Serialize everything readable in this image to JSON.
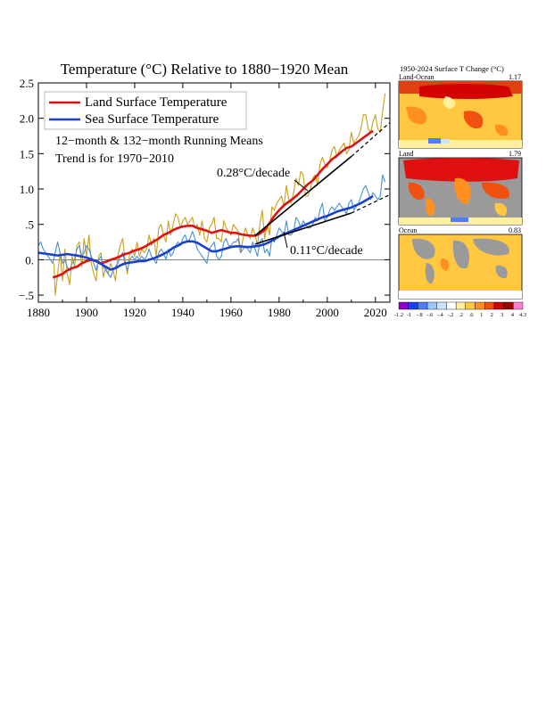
{
  "chart_data": [
    {
      "type": "line",
      "title": "Temperature (°C) Relative to 1880−1920 Mean",
      "xlim": [
        1880,
        2026
      ],
      "ylim": [
        -0.6,
        2.5
      ],
      "xticks": [
        1880,
        1900,
        1920,
        1940,
        1960,
        1980,
        2000,
        2020
      ],
      "xtick_labels": [
        "1880",
        "1900",
        "1920",
        "1940",
        "1960",
        "1980",
        "2000",
        "2020"
      ],
      "yticks": [
        -0.5,
        0,
        0.5,
        1.0,
        1.5,
        2.0,
        2.5
      ],
      "ytick_labels": [
        "−.5",
        "0.",
        ".5",
        "1.0",
        "1.5",
        "2.0",
        "2.5"
      ],
      "zero_line": true,
      "legend_position": "top-left",
      "legend": [
        {
          "label": "Land Surface Temperature",
          "color": "#e01010"
        },
        {
          "label": "Sea Surface Temperature",
          "color": "#1a40d0"
        }
      ],
      "notes": [
        "12−month & 132−month Running Means",
        "Trend is for 1970−2010"
      ],
      "series": [
        {
          "name": "Land Surface Temperature",
          "kind": "12-month running mean",
          "color": "#c8a020",
          "x": [
            1886.5,
            1887,
            1888,
            1889,
            1890,
            1891,
            1892,
            1893,
            1894,
            1895,
            1896,
            1897,
            1898,
            1899,
            1900,
            1901,
            1902,
            1903,
            1904,
            1905,
            1906,
            1907,
            1908,
            1909,
            1910,
            1911,
            1912,
            1913,
            1914,
            1915,
            1916,
            1917,
            1918,
            1919,
            1920,
            1921,
            1922,
            1923,
            1924,
            1925,
            1926,
            1927,
            1928,
            1929,
            1930,
            1931,
            1932,
            1933,
            1934,
            1935,
            1936,
            1937,
            1938,
            1939,
            1940,
            1941,
            1942,
            1943,
            1944,
            1945,
            1946,
            1947,
            1948,
            1949,
            1950,
            1951,
            1952,
            1953,
            1954,
            1955,
            1956,
            1957,
            1958,
            1959,
            1960,
            1961,
            1962,
            1963,
            1964,
            1965,
            1966,
            1967,
            1968,
            1969,
            1970,
            1971,
            1972,
            1973,
            1974,
            1975,
            1976,
            1977,
            1978,
            1979,
            1980,
            1981,
            1982,
            1983,
            1984,
            1985,
            1986,
            1987,
            1988,
            1989,
            1990,
            1991,
            1992,
            1993,
            1994,
            1995,
            1996,
            1997,
            1998,
            1999,
            2000,
            2001,
            2002,
            2003,
            2004,
            2005,
            2006,
            2007,
            2008,
            2009,
            2010,
            2011,
            2012,
            2013,
            2014,
            2015,
            2016,
            2017,
            2018,
            2019,
            2020,
            2021,
            2022,
            2023,
            2024
          ],
          "values": [
            -0.05,
            -0.5,
            -0.2,
            0.1,
            -0.3,
            0.15,
            -0.2,
            -0.35,
            0.05,
            -0.1,
            0.2,
            0.25,
            -0.1,
            0.3,
            0.05,
            0.35,
            -0.05,
            -0.2,
            -0.3,
            0.05,
            0.1,
            -0.25,
            -0.1,
            -0.2,
            -0.05,
            -0.15,
            -0.3,
            0.05,
            0.2,
            0.3,
            0.0,
            -0.2,
            0.1,
            0.15,
            0.05,
            0.25,
            0.05,
            0.15,
            0.1,
            0.15,
            0.35,
            0.2,
            0.3,
            0.05,
            0.45,
            0.5,
            0.35,
            0.25,
            0.55,
            0.35,
            0.5,
            0.65,
            0.6,
            0.45,
            0.55,
            0.6,
            0.5,
            0.55,
            0.6,
            0.45,
            0.5,
            0.35,
            0.55,
            0.3,
            0.25,
            0.45,
            0.5,
            0.6,
            0.3,
            0.3,
            0.25,
            0.55,
            0.45,
            0.4,
            0.35,
            0.5,
            0.45,
            0.4,
            0.1,
            0.3,
            0.45,
            0.35,
            0.3,
            0.45,
            0.35,
            0.2,
            0.5,
            0.7,
            0.3,
            0.5,
            0.35,
            0.75,
            0.7,
            0.8,
            0.85,
            0.9,
            0.75,
            1.05,
            0.85,
            0.8,
            0.95,
            1.15,
            1.05,
            1.25,
            1.2,
            0.9,
            0.9,
            1.0,
            1.15,
            1.2,
            1.05,
            1.35,
            1.45,
            1.35,
            1.3,
            1.4,
            1.55,
            1.6,
            1.45,
            1.55,
            1.6,
            1.65,
            1.5,
            1.55,
            1.8,
            1.65,
            1.7,
            1.75,
            1.85,
            2.05,
            2.05,
            1.85,
            1.8,
            1.95,
            2.05,
            1.85,
            1.8,
            2.1,
            2.35
          ]
        },
        {
          "name": "Sea Surface Temperature",
          "kind": "12-month running mean",
          "color": "#4a90d0",
          "x": [
            1880,
            1881,
            1882,
            1883,
            1884,
            1885,
            1886,
            1887,
            1888,
            1889,
            1890,
            1891,
            1892,
            1893,
            1894,
            1895,
            1896,
            1897,
            1898,
            1899,
            1900,
            1901,
            1902,
            1903,
            1904,
            1905,
            1906,
            1907,
            1908,
            1909,
            1910,
            1911,
            1912,
            1913,
            1914,
            1915,
            1916,
            1917,
            1918,
            1919,
            1920,
            1921,
            1922,
            1923,
            1924,
            1925,
            1926,
            1927,
            1928,
            1929,
            1930,
            1931,
            1932,
            1933,
            1934,
            1935,
            1936,
            1937,
            1938,
            1939,
            1940,
            1941,
            1942,
            1943,
            1944,
            1945,
            1946,
            1947,
            1948,
            1949,
            1950,
            1951,
            1952,
            1953,
            1954,
            1955,
            1956,
            1957,
            1958,
            1959,
            1960,
            1961,
            1962,
            1963,
            1964,
            1965,
            1966,
            1967,
            1968,
            1969,
            1970,
            1971,
            1972,
            1973,
            1974,
            1975,
            1976,
            1977,
            1978,
            1979,
            1980,
            1981,
            1982,
            1983,
            1984,
            1985,
            1986,
            1987,
            1988,
            1989,
            1990,
            1991,
            1992,
            1993,
            1994,
            1995,
            1996,
            1997,
            1998,
            1999,
            2000,
            2001,
            2002,
            2003,
            2004,
            2005,
            2006,
            2007,
            2008,
            2009,
            2010,
            2011,
            2012,
            2013,
            2014,
            2015,
            2016,
            2017,
            2018,
            2019,
            2020,
            2021,
            2022,
            2023,
            2024
          ],
          "values": [
            0.2,
            0.25,
            0.15,
            0.1,
            0.05,
            0.0,
            -0.05,
            0.1,
            0.25,
            0.1,
            -0.05,
            0.0,
            -0.1,
            -0.15,
            -0.05,
            0.0,
            0.15,
            0.2,
            0.05,
            0.1,
            0.2,
            0.15,
            0.05,
            -0.05,
            -0.15,
            0.0,
            0.05,
            -0.1,
            -0.15,
            -0.2,
            -0.25,
            -0.15,
            -0.1,
            -0.05,
            0.05,
            0.1,
            -0.05,
            -0.15,
            0.0,
            0.05,
            0.0,
            0.05,
            0.0,
            0.05,
            0.0,
            0.05,
            0.15,
            0.05,
            0.0,
            -0.05,
            0.1,
            0.15,
            0.1,
            0.0,
            0.15,
            0.05,
            0.1,
            0.2,
            0.25,
            0.2,
            0.3,
            0.35,
            0.25,
            0.3,
            0.4,
            0.3,
            0.15,
            0.1,
            0.05,
            0.0,
            -0.05,
            0.15,
            0.2,
            0.25,
            0.05,
            0.0,
            0.05,
            0.25,
            0.3,
            0.2,
            0.2,
            0.25,
            0.25,
            0.3,
            0.1,
            0.15,
            0.2,
            0.15,
            0.1,
            0.25,
            0.15,
            0.05,
            0.25,
            0.3,
            0.1,
            0.15,
            0.05,
            0.3,
            0.25,
            0.35,
            0.45,
            0.4,
            0.35,
            0.55,
            0.35,
            0.35,
            0.4,
            0.6,
            0.55,
            0.45,
            0.55,
            0.5,
            0.45,
            0.45,
            0.5,
            0.6,
            0.55,
            0.7,
            0.8,
            0.55,
            0.6,
            0.7,
            0.75,
            0.7,
            0.75,
            0.8,
            0.75,
            0.7,
            0.65,
            0.8,
            0.85,
            0.7,
            0.75,
            0.8,
            0.9,
            1.0,
            1.05,
            0.95,
            0.85,
            0.95,
            0.9,
            0.85,
            0.9,
            1.2,
            1.1
          ]
        },
        {
          "name": "Land Surface Temperature",
          "kind": "132-month running mean",
          "color": "#e01010",
          "x": [
            1886,
            1888,
            1890,
            1892,
            1894,
            1896,
            1898,
            1900,
            1902,
            1904,
            1906,
            1908,
            1910,
            1912,
            1914,
            1916,
            1918,
            1920,
            1922,
            1924,
            1926,
            1928,
            1930,
            1932,
            1934,
            1936,
            1938,
            1940,
            1942,
            1944,
            1946,
            1948,
            1950,
            1952,
            1954,
            1956,
            1958,
            1960,
            1962,
            1964,
            1966,
            1968,
            1970,
            1972,
            1974,
            1976,
            1978,
            1980,
            1982,
            1984,
            1986,
            1988,
            1990,
            1992,
            1994,
            1996,
            1998,
            2000,
            2002,
            2004,
            2006,
            2008,
            2010,
            2012,
            2014,
            2016,
            2018,
            2019
          ],
          "values": [
            -0.25,
            -0.23,
            -0.2,
            -0.15,
            -0.12,
            -0.1,
            -0.05,
            -0.02,
            0.0,
            -0.02,
            -0.05,
            -0.03,
            0.0,
            0.02,
            0.05,
            0.08,
            0.1,
            0.13,
            0.15,
            0.18,
            0.22,
            0.26,
            0.3,
            0.35,
            0.38,
            0.42,
            0.45,
            0.47,
            0.48,
            0.48,
            0.45,
            0.43,
            0.41,
            0.38,
            0.4,
            0.42,
            0.4,
            0.38,
            0.38,
            0.36,
            0.35,
            0.34,
            0.34,
            0.37,
            0.42,
            0.52,
            0.62,
            0.7,
            0.77,
            0.82,
            0.87,
            0.93,
            1.0,
            1.07,
            1.12,
            1.2,
            1.28,
            1.35,
            1.42,
            1.47,
            1.53,
            1.58,
            1.6,
            1.65,
            1.7,
            1.75,
            1.8,
            1.82
          ]
        },
        {
          "name": "Sea Surface Temperature",
          "kind": "132-month running mean",
          "color": "#1a40d0",
          "x": [
            1880,
            1884,
            1888,
            1892,
            1896,
            1900,
            1904,
            1906,
            1908,
            1910,
            1912,
            1914,
            1916,
            1918,
            1920,
            1922,
            1924,
            1926,
            1928,
            1930,
            1932,
            1934,
            1936,
            1938,
            1940,
            1942,
            1944,
            1946,
            1948,
            1950,
            1952,
            1954,
            1956,
            1958,
            1960,
            1962,
            1964,
            1966,
            1968,
            1970,
            1972,
            1974,
            1976,
            1978,
            1980,
            1982,
            1984,
            1986,
            1988,
            1990,
            1992,
            1994,
            1996,
            1998,
            2000,
            2002,
            2004,
            2006,
            2008,
            2010,
            2012,
            2014,
            2016,
            2018,
            2019
          ],
          "values": [
            0.1,
            0.08,
            0.06,
            0.08,
            0.06,
            0.03,
            -0.02,
            -0.06,
            -0.1,
            -0.14,
            -0.12,
            -0.08,
            -0.05,
            -0.04,
            -0.03,
            -0.02,
            -0.02,
            0.0,
            0.02,
            0.05,
            0.08,
            0.12,
            0.17,
            0.2,
            0.24,
            0.26,
            0.26,
            0.24,
            0.2,
            0.16,
            0.12,
            0.12,
            0.14,
            0.16,
            0.18,
            0.19,
            0.19,
            0.18,
            0.18,
            0.19,
            0.2,
            0.22,
            0.25,
            0.29,
            0.33,
            0.36,
            0.39,
            0.42,
            0.45,
            0.48,
            0.51,
            0.54,
            0.57,
            0.6,
            0.62,
            0.65,
            0.68,
            0.7,
            0.72,
            0.74,
            0.77,
            0.8,
            0.84,
            0.88,
            0.9
          ]
        },
        {
          "name": "Land trend",
          "kind": "trend 1970−2010",
          "color": "#000000",
          "x": [
            1970,
            2010
          ],
          "values": [
            0.34,
            1.46
          ]
        },
        {
          "name": "Sea trend",
          "kind": "trend 1970−2010",
          "color": "#000000",
          "x": [
            1970,
            2010
          ],
          "values": [
            0.22,
            0.66
          ]
        }
      ],
      "trend_extensions": [
        {
          "x": [
            2010,
            2026
          ],
          "values": [
            1.46,
            1.94
          ]
        },
        {
          "x": [
            2010,
            2026
          ],
          "values": [
            0.66,
            0.92
          ]
        }
      ],
      "annotations": [
        {
          "text": "0.28°C/decade",
          "arrow_to": [
            1995,
            1.08
          ]
        },
        {
          "text": "0.11°C/decade",
          "arrow_to": [
            1980,
            0.3
          ]
        }
      ]
    },
    {
      "type": "heatmap",
      "title": "1950-2024 Surface T Change (°C)",
      "panels": [
        {
          "name": "Land-Ocean",
          "value": "1.17"
        },
        {
          "name": "Land",
          "value": "1.79"
        },
        {
          "name": "Ocean",
          "value": "0.83"
        }
      ],
      "colorbar": {
        "labels": [
          "-1.2",
          "-1",
          "-.8",
          "-.6",
          "-.4",
          "-.2",
          ".2",
          ".6",
          "1",
          "2",
          "3",
          "4",
          "4.3"
        ],
        "colors": [
          "#8f00d0",
          "#1e3cff",
          "#4d7eff",
          "#9ec6ff",
          "#c8e4ff",
          "#ffffff",
          "#fff0a0",
          "#ffc840",
          "#ff9020",
          "#f05010",
          "#d40000",
          "#a00000",
          "#ff80d0"
        ]
      }
    }
  ]
}
